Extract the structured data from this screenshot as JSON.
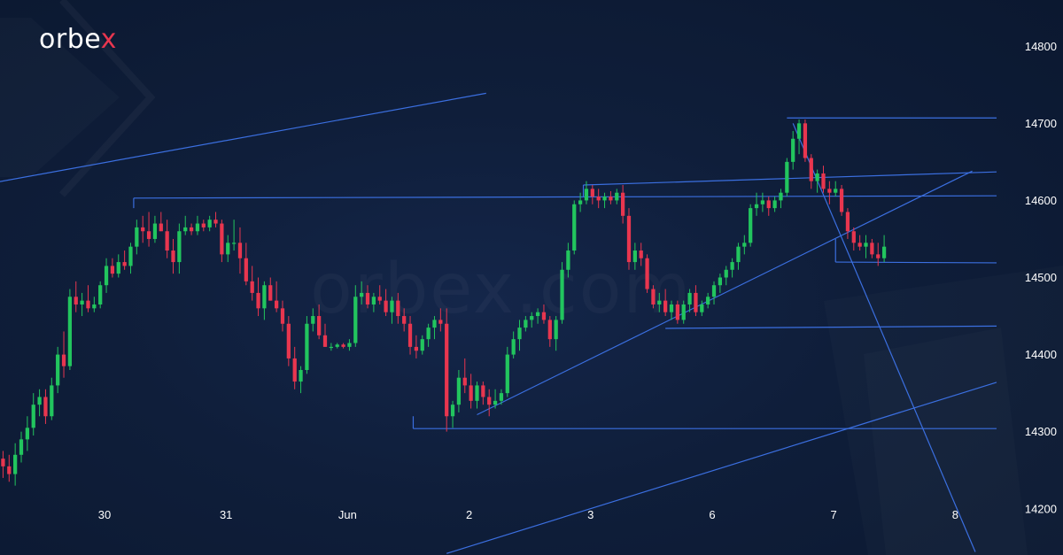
{
  "brand": {
    "logo_text": "orbe",
    "logo_x": "x",
    "watermark": "orbex.com"
  },
  "colors": {
    "up": "#22c55e",
    "down": "#e8364f",
    "lines": "#3b6fe0",
    "background": "#0f1e3a"
  },
  "chart_data": {
    "type": "candlestick",
    "ylim": [
      14140,
      14860
    ],
    "yticks": [
      14800,
      14700,
      14600,
      14500,
      14400,
      14300,
      14200
    ],
    "xlabels": [
      {
        "label": "30",
        "x": 21.7
      },
      {
        "label": "31",
        "x": 41.7
      },
      {
        "label": "Jun",
        "x": 61.7
      },
      {
        "label": "2",
        "x": 81.7
      },
      {
        "label": "3",
        "x": 101.7
      },
      {
        "label": "6",
        "x": 121.7
      },
      {
        "label": "7",
        "x": 141.7
      },
      {
        "label": "8",
        "x": 161.7
      }
    ],
    "xlim": [
      4.5,
      168.5
    ],
    "ohlc": [
      [
        14265,
        14275,
        14240,
        14255
      ],
      [
        14255,
        14270,
        14235,
        14245
      ],
      [
        14245,
        14285,
        14230,
        14270
      ],
      [
        14270,
        14300,
        14260,
        14290
      ],
      [
        14290,
        14320,
        14275,
        14305
      ],
      [
        14305,
        14350,
        14295,
        14335
      ],
      [
        14335,
        14355,
        14320,
        14345
      ],
      [
        14345,
        14355,
        14310,
        14320
      ],
      [
        14320,
        14370,
        14315,
        14360
      ],
      [
        14360,
        14410,
        14350,
        14400
      ],
      [
        14400,
        14430,
        14370,
        14385
      ],
      [
        14385,
        14485,
        14380,
        14475
      ],
      [
        14475,
        14495,
        14455,
        14465
      ],
      [
        14465,
        14480,
        14450,
        14470
      ],
      [
        14470,
        14490,
        14455,
        14460
      ],
      [
        14460,
        14475,
        14455,
        14465
      ],
      [
        14465,
        14495,
        14460,
        14490
      ],
      [
        14490,
        14525,
        14480,
        14515
      ],
      [
        14515,
        14525,
        14500,
        14505
      ],
      [
        14505,
        14530,
        14500,
        14520
      ],
      [
        14520,
        14535,
        14510,
        14515
      ],
      [
        14515,
        14545,
        14505,
        14540
      ],
      [
        14540,
        14575,
        14530,
        14565
      ],
      [
        14565,
        14580,
        14545,
        14560
      ],
      [
        14560,
        14585,
        14540,
        14550
      ],
      [
        14550,
        14580,
        14545,
        14570
      ],
      [
        14570,
        14585,
        14560,
        14560
      ],
      [
        14560,
        14575,
        14525,
        14535
      ],
      [
        14535,
        14550,
        14505,
        14520
      ],
      [
        14520,
        14570,
        14505,
        14560
      ],
      [
        14560,
        14580,
        14555,
        14565
      ],
      [
        14565,
        14570,
        14555,
        14560
      ],
      [
        14560,
        14580,
        14555,
        14570
      ],
      [
        14570,
        14575,
        14560,
        14565
      ],
      [
        14565,
        14580,
        14560,
        14575
      ],
      [
        14575,
        14585,
        14565,
        14570
      ],
      [
        14570,
        14575,
        14520,
        14530
      ],
      [
        14530,
        14555,
        14520,
        14545
      ],
      [
        14545,
        14575,
        14535,
        14545
      ],
      [
        14545,
        14565,
        14505,
        14525
      ],
      [
        14525,
        14545,
        14490,
        14495
      ],
      [
        14495,
        14515,
        14470,
        14480
      ],
      [
        14480,
        14500,
        14450,
        14460
      ],
      [
        14460,
        14495,
        14445,
        14490
      ],
      [
        14490,
        14500,
        14470,
        14470
      ],
      [
        14470,
        14495,
        14455,
        14460
      ],
      [
        14460,
        14470,
        14430,
        14440
      ],
      [
        14440,
        14450,
        14385,
        14395
      ],
      [
        14395,
        14410,
        14355,
        14365
      ],
      [
        14365,
        14385,
        14350,
        14380
      ],
      [
        14380,
        14450,
        14375,
        14440
      ],
      [
        14440,
        14460,
        14430,
        14450
      ],
      [
        14450,
        14465,
        14420,
        14425
      ],
      [
        14425,
        14440,
        14410,
        14410
      ],
      [
        14410,
        14415,
        14405,
        14410
      ],
      [
        14410,
        14415,
        14408,
        14413
      ],
      [
        14413,
        14415,
        14408,
        14410
      ],
      [
        14410,
        14420,
        14405,
        14415
      ],
      [
        14415,
        14490,
        14410,
        14475
      ],
      [
        14475,
        14495,
        14465,
        14480
      ],
      [
        14480,
        14490,
        14460,
        14465
      ],
      [
        14465,
        14480,
        14455,
        14475
      ],
      [
        14475,
        14490,
        14465,
        14470
      ],
      [
        14470,
        14485,
        14450,
        14455
      ],
      [
        14455,
        14475,
        14440,
        14470
      ],
      [
        14470,
        14480,
        14440,
        14450
      ],
      [
        14450,
        14460,
        14430,
        14440
      ],
      [
        14440,
        14450,
        14400,
        14410
      ],
      [
        14410,
        14425,
        14395,
        14405
      ],
      [
        14405,
        14425,
        14400,
        14420
      ],
      [
        14420,
        14440,
        14410,
        14435
      ],
      [
        14435,
        14450,
        14420,
        14445
      ],
      [
        14445,
        14460,
        14430,
        14440
      ],
      [
        14440,
        14460,
        14300,
        14320
      ],
      [
        14320,
        14340,
        14305,
        14335
      ],
      [
        14335,
        14380,
        14325,
        14370
      ],
      [
        14370,
        14395,
        14350,
        14360
      ],
      [
        14360,
        14375,
        14330,
        14340
      ],
      [
        14340,
        14365,
        14330,
        14360
      ],
      [
        14360,
        14365,
        14335,
        14345
      ],
      [
        14345,
        14355,
        14320,
        14335
      ],
      [
        14335,
        14355,
        14330,
        14340
      ],
      [
        14340,
        14355,
        14335,
        14350
      ],
      [
        14350,
        14410,
        14345,
        14400
      ],
      [
        14400,
        14430,
        14395,
        14420
      ],
      [
        14420,
        14445,
        14405,
        14435
      ],
      [
        14435,
        14450,
        14430,
        14445
      ],
      [
        14445,
        14455,
        14435,
        14450
      ],
      [
        14450,
        14460,
        14440,
        14455
      ],
      [
        14455,
        14465,
        14440,
        14445
      ],
      [
        14445,
        14450,
        14410,
        14420
      ],
      [
        14420,
        14450,
        14405,
        14445
      ],
      [
        14445,
        14520,
        14440,
        14510
      ],
      [
        14510,
        14545,
        14500,
        14535
      ],
      [
        14535,
        14600,
        14530,
        14595
      ],
      [
        14595,
        14610,
        14585,
        14600
      ],
      [
        14600,
        14625,
        14595,
        14615
      ],
      [
        14615,
        14620,
        14595,
        14605
      ],
      [
        14605,
        14615,
        14590,
        14600
      ],
      [
        14600,
        14610,
        14590,
        14605
      ],
      [
        14605,
        14612,
        14595,
        14600
      ],
      [
        14600,
        14615,
        14595,
        14610
      ],
      [
        14610,
        14620,
        14570,
        14580
      ],
      [
        14580,
        14590,
        14510,
        14520
      ],
      [
        14520,
        14545,
        14510,
        14535
      ],
      [
        14535,
        14545,
        14515,
        14525
      ],
      [
        14525,
        14530,
        14480,
        14485
      ],
      [
        14485,
        14490,
        14460,
        14465
      ],
      [
        14465,
        14480,
        14455,
        14470
      ],
      [
        14470,
        14485,
        14450,
        14455
      ],
      [
        14455,
        14470,
        14445,
        14465
      ],
      [
        14465,
        14470,
        14440,
        14445
      ],
      [
        14445,
        14470,
        14440,
        14465
      ],
      [
        14465,
        14485,
        14455,
        14480
      ],
      [
        14480,
        14490,
        14450,
        14455
      ],
      [
        14455,
        14470,
        14450,
        14465
      ],
      [
        14465,
        14480,
        14460,
        14475
      ],
      [
        14475,
        14495,
        14465,
        14490
      ],
      [
        14490,
        14505,
        14480,
        14500
      ],
      [
        14500,
        14515,
        14490,
        14510
      ],
      [
        14510,
        14525,
        14500,
        14520
      ],
      [
        14520,
        14545,
        14510,
        14540
      ],
      [
        14540,
        14555,
        14530,
        14545
      ],
      [
        14545,
        14595,
        14540,
        14590
      ],
      [
        14590,
        14610,
        14580,
        14595
      ],
      [
        14595,
        14610,
        14585,
        14600
      ],
      [
        14600,
        14605,
        14580,
        14590
      ],
      [
        14590,
        14605,
        14585,
        14600
      ],
      [
        14600,
        14615,
        14590,
        14610
      ],
      [
        14610,
        14655,
        14605,
        14650
      ],
      [
        14650,
        14690,
        14640,
        14680
      ],
      [
        14680,
        14705,
        14660,
        14700
      ],
      [
        14700,
        14705,
        14650,
        14655
      ],
      [
        14655,
        14660,
        14615,
        14625
      ],
      [
        14625,
        14640,
        14610,
        14635
      ],
      [
        14635,
        14645,
        14610,
        14615
      ],
      [
        14615,
        14625,
        14595,
        14610
      ],
      [
        14610,
        14625,
        14605,
        14615
      ],
      [
        14615,
        14620,
        14580,
        14585
      ],
      [
        14585,
        14590,
        14550,
        14560
      ],
      [
        14560,
        14565,
        14535,
        14545
      ],
      [
        14545,
        14555,
        14535,
        14540
      ],
      [
        14540,
        14555,
        14525,
        14545
      ],
      [
        14545,
        14550,
        14525,
        14530
      ],
      [
        14530,
        14545,
        14515,
        14525
      ],
      [
        14525,
        14555,
        14520,
        14540
      ]
    ],
    "lines": [
      {
        "x1": 0,
        "y1": 14618,
        "x2": 84.5,
        "y2": 14739
      },
      {
        "x1": 26.5,
        "y1": 14603,
        "x2": 168.5,
        "y2": 14606
      },
      {
        "x1": 26.5,
        "y1": 14603,
        "x2": 26.5,
        "y2": 14590
      },
      {
        "x1": 100.5,
        "y1": 14620,
        "x2": 168.5,
        "y2": 14637
      },
      {
        "x1": 100.5,
        "y1": 14620,
        "x2": 100.5,
        "y2": 14605
      },
      {
        "x1": 134,
        "y1": 14707,
        "x2": 168.5,
        "y2": 14707
      },
      {
        "x1": 142,
        "y1": 14520,
        "x2": 168.5,
        "y2": 14519
      },
      {
        "x1": 142,
        "y1": 14520,
        "x2": 142,
        "y2": 14550
      },
      {
        "x1": 114,
        "y1": 14434,
        "x2": 168.5,
        "y2": 14437
      },
      {
        "x1": 72.5,
        "y1": 14304,
        "x2": 168.5,
        "y2": 14304
      },
      {
        "x1": 72.5,
        "y1": 14304,
        "x2": 72.5,
        "y2": 14320
      },
      {
        "x1": 83,
        "y1": 14322,
        "x2": 164.5,
        "y2": 14638
      },
      {
        "x1": 78,
        "y1": 14142,
        "x2": 168.5,
        "y2": 14364
      },
      {
        "x1": 135,
        "y1": 14700,
        "x2": 165,
        "y2": 14144
      }
    ]
  }
}
